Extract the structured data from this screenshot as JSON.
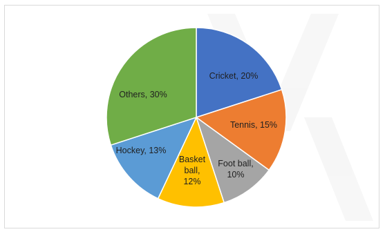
{
  "chart_data": {
    "type": "pie",
    "title": "",
    "slices": [
      {
        "name": "Cricket",
        "value": 20,
        "label_lines": [
          "Cricket, 20%"
        ],
        "color": "#4472c4"
      },
      {
        "name": "Tennis",
        "value": 15,
        "label_lines": [
          "Tennis, 15%"
        ],
        "color": "#ed7d31"
      },
      {
        "name": "Foot ball",
        "value": 10,
        "label_lines": [
          "Foot ball,",
          "10%"
        ],
        "color": "#a5a5a5"
      },
      {
        "name": "Basket ball",
        "value": 12,
        "label_lines": [
          "Basket",
          "ball,",
          "12%"
        ],
        "color": "#ffc000"
      },
      {
        "name": "Hockey",
        "value": 13,
        "label_lines": [
          "Hockey, 13%"
        ],
        "color": "#5b9bd5"
      },
      {
        "name": "Others",
        "value": 30,
        "label_lines": [
          "Others, 30%"
        ],
        "color": "#70ad47"
      }
    ],
    "start_angle_deg": 0,
    "direction": "clockwise",
    "legend": "none"
  }
}
